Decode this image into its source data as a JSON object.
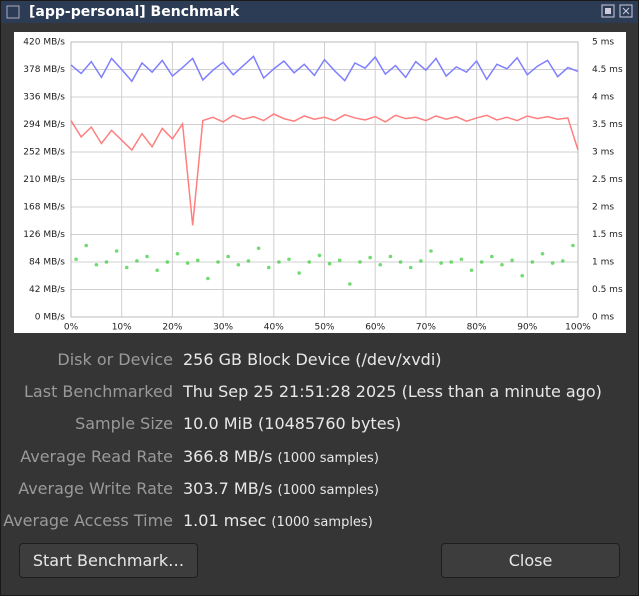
{
  "window": {
    "title": "[app-personal] Benchmark"
  },
  "chart_data": {
    "type": "line",
    "ylim": [
      0,
      420
    ],
    "yticks": [
      {
        "value": 0,
        "label": "0 MB/s"
      },
      {
        "value": 42,
        "label": "42 MB/s"
      },
      {
        "value": 84,
        "label": "84 MB/s"
      },
      {
        "value": 126,
        "label": "126 MB/s"
      },
      {
        "value": 168,
        "label": "168 MB/s"
      },
      {
        "value": 210,
        "label": "210 MB/s"
      },
      {
        "value": 252,
        "label": "252 MB/s"
      },
      {
        "value": 294,
        "label": "294 MB/s"
      },
      {
        "value": 336,
        "label": "336 MB/s"
      },
      {
        "value": 378,
        "label": "378 MB/s"
      },
      {
        "value": 420,
        "label": "420 MB/s"
      }
    ],
    "y2lim": [
      0,
      5
    ],
    "y2ticks": [
      {
        "value": 0,
        "label": "0 ms"
      },
      {
        "value": 0.5,
        "label": "0.5 ms"
      },
      {
        "value": 1,
        "label": "1 ms"
      },
      {
        "value": 1.5,
        "label": "1.5 ms"
      },
      {
        "value": 2,
        "label": "2 ms"
      },
      {
        "value": 2.5,
        "label": "2.5 ms"
      },
      {
        "value": 3,
        "label": "3 ms"
      },
      {
        "value": 3.5,
        "label": "3.5 ms"
      },
      {
        "value": 4,
        "label": "4 ms"
      },
      {
        "value": 4.5,
        "label": "4.5 ms"
      },
      {
        "value": 5,
        "label": "5 ms"
      }
    ],
    "xlim": [
      0,
      100
    ],
    "xticks": [
      {
        "value": 0,
        "label": "0%"
      },
      {
        "value": 10,
        "label": "10%"
      },
      {
        "value": 20,
        "label": "20%"
      },
      {
        "value": 30,
        "label": "30%"
      },
      {
        "value": 40,
        "label": "40%"
      },
      {
        "value": 50,
        "label": "50%"
      },
      {
        "value": 60,
        "label": "60%"
      },
      {
        "value": 70,
        "label": "70%"
      },
      {
        "value": 80,
        "label": "80%"
      },
      {
        "value": 90,
        "label": "90%"
      },
      {
        "value": 100,
        "label": "100%"
      }
    ],
    "grid": true,
    "series": [
      {
        "kind": "line",
        "color": "#7f7fff",
        "x": [
          0,
          2,
          4,
          6,
          8,
          10,
          12,
          14,
          16,
          18,
          20,
          22,
          24,
          26,
          28,
          30,
          32,
          34,
          36,
          38,
          40,
          42,
          44,
          46,
          48,
          50,
          52,
          54,
          56,
          58,
          60,
          62,
          64,
          66,
          68,
          70,
          72,
          74,
          76,
          78,
          80,
          82,
          84,
          86,
          88,
          90,
          92,
          94,
          96,
          98,
          100
        ],
        "values": [
          385,
          372,
          390,
          366,
          395,
          378,
          360,
          388,
          374,
          392,
          368,
          381,
          395,
          362,
          377,
          389,
          370,
          384,
          398,
          365,
          379,
          391,
          373,
          386,
          369,
          393,
          376,
          361,
          388,
          380,
          397,
          371,
          384,
          366,
          390,
          377,
          395,
          368,
          382,
          374,
          391,
          363,
          386,
          379,
          396,
          370,
          383,
          392,
          367,
          381,
          375
        ]
      },
      {
        "kind": "line",
        "color": "#ff7f7f",
        "x": [
          0,
          2,
          4,
          6,
          8,
          10,
          12,
          14,
          16,
          18,
          20,
          22,
          24,
          26,
          28,
          30,
          32,
          34,
          36,
          38,
          40,
          42,
          44,
          46,
          48,
          50,
          52,
          54,
          56,
          58,
          60,
          62,
          64,
          66,
          68,
          70,
          72,
          74,
          76,
          78,
          80,
          82,
          84,
          86,
          88,
          90,
          92,
          94,
          96,
          98,
          100
        ],
        "values": [
          300,
          275,
          290,
          265,
          285,
          270,
          255,
          280,
          260,
          288,
          272,
          295,
          140,
          300,
          305,
          298,
          308,
          302,
          306,
          300,
          310,
          303,
          299,
          307,
          302,
          305,
          300,
          309,
          304,
          301,
          306,
          298,
          308,
          303,
          305,
          300,
          307,
          302,
          306,
          299,
          304,
          308,
          301,
          305,
          300,
          307,
          303,
          306,
          302,
          304,
          255
        ]
      },
      {
        "kind": "scatter",
        "axis": "y2",
        "color": "#33cc33",
        "x": [
          1,
          3,
          5,
          7,
          9,
          11,
          13,
          15,
          17,
          19,
          21,
          23,
          25,
          27,
          29,
          31,
          33,
          35,
          37,
          39,
          41,
          43,
          45,
          47,
          49,
          51,
          53,
          55,
          57,
          59,
          61,
          63,
          65,
          67,
          69,
          71,
          73,
          75,
          77,
          79,
          81,
          83,
          85,
          87,
          89,
          91,
          93,
          95,
          97,
          99
        ],
        "values": [
          1.05,
          1.3,
          0.95,
          1.0,
          1.2,
          0.9,
          1.02,
          1.1,
          0.85,
          1.0,
          1.15,
          0.98,
          1.03,
          0.7,
          1.0,
          1.1,
          0.95,
          1.02,
          1.25,
          0.9,
          1.0,
          1.05,
          0.8,
          1.0,
          1.12,
          0.97,
          1.03,
          0.6,
          1.0,
          1.08,
          0.95,
          1.1,
          1.0,
          0.9,
          1.02,
          1.2,
          0.98,
          1.0,
          1.05,
          0.85,
          1.0,
          1.1,
          0.95,
          1.03,
          0.75,
          1.0,
          1.15,
          0.98,
          1.02,
          1.3
        ]
      }
    ]
  },
  "info": [
    {
      "label": "Disk or Device",
      "value": "256 GB Block Device (/dev/xvdi)"
    },
    {
      "label": "Last Benchmarked",
      "value": "Thu Sep 25 21:51:28 2025 (Less than a minute ago)"
    },
    {
      "label": "Sample Size",
      "value": "10.0 MiB (10485760 bytes)"
    },
    {
      "label": "Average Read Rate",
      "value": "366.8 MB/s",
      "note": "(1000 samples)"
    },
    {
      "label": "Average Write Rate",
      "value": "303.7 MB/s",
      "note": "(1000 samples)"
    },
    {
      "label": "Average Access Time",
      "value": "1.01 msec",
      "note": "(1000 samples)"
    }
  ],
  "buttons": {
    "start": "Start Benchmark…",
    "close": "Close"
  }
}
